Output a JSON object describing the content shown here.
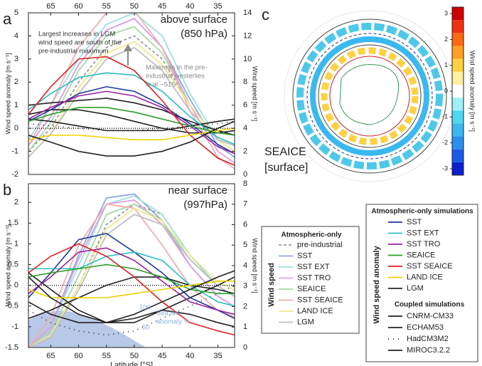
{
  "panel_labels": [
    "a",
    "b",
    "c"
  ],
  "chart_data": [
    {
      "type": "line",
      "title": [
        "above surface",
        "(850 hPa)"
      ],
      "x_label": "",
      "y_label": "Wind speed anomaly [m s⁻¹]",
      "y2_label": "Wind speed [m s⁻¹]",
      "x": [
        69,
        65,
        60,
        55,
        50,
        45,
        40,
        35,
        32
      ],
      "xlim": [
        69,
        32
      ],
      "xticks": [
        65,
        60,
        55,
        50,
        45,
        40,
        35
      ],
      "xaxis": "top",
      "ylim": [
        -2,
        5
      ],
      "yticks": [
        -2,
        -1,
        0,
        1,
        2,
        3,
        4,
        5
      ],
      "y2lim": [
        0,
        14
      ],
      "y2ticks": [
        0,
        2,
        4,
        6,
        8,
        10,
        12,
        14
      ],
      "zero_line": true,
      "annotations": [
        [
          "Largest increases in LGM",
          "wind speed are south of the",
          "pre-industrial maximum"
        ],
        [
          "Maximum in the pre-",
          "industrial westerlies",
          "is at ~51S"
        ]
      ],
      "series": [
        {
          "name": "SST",
          "color": "#1f3a9a",
          "values": [
            0.3,
            0.8,
            1.5,
            1.8,
            1.6,
            1.0,
            0.2,
            -0.7,
            -1.1
          ]
        },
        {
          "name": "SST EXT",
          "color": "#2bbfbf",
          "values": [
            0.8,
            1.5,
            2.2,
            2.4,
            2.3,
            1.6,
            0.5,
            -0.4,
            -0.7
          ]
        },
        {
          "name": "SST TRO",
          "color": "#a020a0",
          "values": [
            0.4,
            0.9,
            1.4,
            1.6,
            1.4,
            0.9,
            0.1,
            -0.8,
            -1.1
          ]
        },
        {
          "name": "SEAICE",
          "color": "#2ca02c",
          "values": [
            0.3,
            0.6,
            0.9,
            0.9,
            0.7,
            0.4,
            0.1,
            -0.2,
            -0.3
          ]
        },
        {
          "name": "SST SEAICE",
          "color": "#e02020",
          "values": [
            0.6,
            1.8,
            3.0,
            3.1,
            2.5,
            1.2,
            -0.3,
            -1.3,
            -1.6
          ]
        },
        {
          "name": "LAND ICE",
          "color": "#f0d000",
          "values": [
            -0.5,
            -0.3,
            -0.3,
            -0.4,
            -0.5,
            -0.5,
            -0.3,
            -0.1,
            0.0
          ]
        },
        {
          "name": "LGM",
          "color": "#222222",
          "values": [
            -0.3,
            -0.6,
            -1.0,
            -1.2,
            -1.2,
            -1.0,
            -0.6,
            0.0,
            0.3
          ]
        }
      ],
      "coupled_series": [
        {
          "name": "CNRM-CM33",
          "color": "#222222",
          "values": [
            0.6,
            0.8,
            0.8,
            0.6,
            0.3,
            0.0,
            -0.2,
            -0.2,
            -0.1
          ]
        },
        {
          "name": "ECHAM53",
          "color": "#222222",
          "values": [
            1.0,
            1.1,
            1.2,
            1.3,
            1.1,
            0.8,
            0.3,
            -0.1,
            -0.3
          ]
        },
        {
          "name": "HadCM3M2",
          "color": "#222222",
          "dash": "1,6",
          "values": [
            0.2,
            0.1,
            0.0,
            -0.1,
            -0.1,
            0.0,
            0.1,
            0.2,
            0.3
          ]
        },
        {
          "name": "MIROC3.2.2",
          "color": "#222222",
          "values": [
            0.4,
            0.3,
            0.1,
            -0.1,
            -0.1,
            -0.1,
            0.1,
            0.3,
            0.4
          ]
        }
      ],
      "wind_series": [
        {
          "name": "pre-industrial",
          "color": "#999999",
          "dash": "4,3",
          "values": [
            2,
            4,
            8,
            11,
            12,
            10,
            6,
            3,
            2
          ]
        },
        {
          "name": "SST",
          "color": "#8fa8e0",
          "values": [
            2.5,
            5,
            9.5,
            12.5,
            13.5,
            11,
            6.5,
            2.5,
            1.5
          ]
        },
        {
          "name": "SST EXT",
          "color": "#9ee0e0",
          "values": [
            3,
            6,
            10,
            13,
            14,
            12,
            7,
            3,
            2
          ]
        },
        {
          "name": "SST TRO",
          "color": "#e0a0e0",
          "values": [
            2.5,
            5,
            9.5,
            12.5,
            13.5,
            11,
            6,
            2,
            1
          ]
        },
        {
          "name": "SEAICE",
          "color": "#a8d8a8",
          "values": [
            2,
            4.5,
            9,
            12,
            12.8,
            10.5,
            6,
            3,
            2
          ]
        },
        {
          "name": "SST SEAICE",
          "color": "#f0b0b0",
          "values": [
            2.5,
            6,
            11,
            14,
            14.2,
            11,
            5.5,
            1.5,
            0.5
          ]
        },
        {
          "name": "LAND ICE",
          "color": "#f0e890",
          "values": [
            1.5,
            3.5,
            7.5,
            10.5,
            11.5,
            9.5,
            6,
            3,
            2
          ]
        },
        {
          "name": "LGM",
          "color": "#c0c0c0",
          "values": [
            1.5,
            3.5,
            7,
            10,
            11,
            9,
            5.5,
            3,
            2.5
          ]
        }
      ]
    },
    {
      "type": "line",
      "title": [
        "near surface",
        "(997hPa)"
      ],
      "x_label": "Latitude [°S]",
      "y_label": "Wind speed anomaly [m s⁻¹]",
      "y2_label": "Wind speed [m s⁻¹]",
      "x": [
        69,
        65,
        60,
        55,
        50,
        45,
        40,
        35,
        32
      ],
      "xlim": [
        69,
        32
      ],
      "xticks": [
        65,
        60,
        55,
        50,
        45,
        40,
        35
      ],
      "xaxis": "bottom",
      "ylim": [
        -1.5,
        2.45
      ],
      "yticks": [
        -1.5,
        -1,
        -0.5,
        0,
        0.5,
        1,
        1.5,
        2
      ],
      "y2lim": [
        0,
        8
      ],
      "y2ticks": [
        0,
        1,
        2,
        3,
        4,
        5,
        6,
        7,
        8
      ],
      "zero_line": true,
      "annotations": [
        [
          "100"
        ],
        [
          "50"
        ],
        [
          "Sea ice",
          "anomaly %"
        ]
      ],
      "series": [
        {
          "name": "SST",
          "color": "#1f3a9a",
          "values": [
            -0.3,
            0.3,
            1.1,
            1.25,
            0.8,
            0.3,
            -0.3,
            -0.6,
            -0.8
          ]
        },
        {
          "name": "SST EXT",
          "color": "#2bbfbf",
          "values": [
            0.4,
            0.4,
            0.4,
            0.7,
            0.8,
            0.6,
            0.0,
            -0.4,
            -0.5
          ]
        },
        {
          "name": "SST TRO",
          "color": "#a020a0",
          "values": [
            -0.2,
            0.2,
            0.8,
            0.9,
            0.6,
            0.1,
            -0.4,
            -0.6,
            -0.7
          ]
        },
        {
          "name": "SEAICE",
          "color": "#2ca02c",
          "values": [
            0.2,
            0.3,
            0.4,
            0.5,
            0.4,
            0.2,
            -0.1,
            -0.2,
            -0.2
          ]
        },
        {
          "name": "SST SEAICE",
          "color": "#e02020",
          "values": [
            0.3,
            0.7,
            1.0,
            0.7,
            0.2,
            -0.4,
            -0.9,
            -1.1,
            -1.2
          ]
        },
        {
          "name": "LAND ICE",
          "color": "#f0d000",
          "values": [
            -0.1,
            -0.3,
            -0.3,
            -0.3,
            -0.2,
            -0.1,
            0.0,
            0.1,
            0.1
          ]
        },
        {
          "name": "LGM",
          "color": "#222222",
          "values": [
            0.2,
            -0.3,
            -0.7,
            -0.9,
            -0.7,
            -0.4,
            -0.1,
            0.2,
            0.35
          ]
        }
      ],
      "coupled_series": [
        {
          "name": "CNRM-CM33",
          "color": "#222222",
          "values": [
            0.3,
            -0.1,
            -0.6,
            -0.9,
            -0.9,
            -0.6,
            -0.3,
            0.0,
            0.2
          ]
        },
        {
          "name": "ECHAM53",
          "color": "#222222",
          "values": [
            -0.8,
            -0.6,
            -0.3,
            0.0,
            0.2,
            0.2,
            0.0,
            -0.1,
            -0.2
          ]
        },
        {
          "name": "HadCM3M2",
          "color": "#222222",
          "dash": "1,6",
          "values": [
            -0.6,
            -0.9,
            -1.1,
            -1.2,
            -1.1,
            -0.8,
            -0.5,
            -0.2,
            0.0
          ]
        },
        {
          "name": "MIROC3.2.2",
          "color": "#222222",
          "values": [
            -0.4,
            -0.7,
            -0.9,
            -0.9,
            -0.8,
            -0.6,
            -0.7,
            -0.9,
            -1.0
          ]
        }
      ],
      "wind_series": [
        {
          "name": "pre-industrial",
          "color": "#999999",
          "dash": "4,3",
          "values": [
            0,
            0.5,
            3,
            6,
            7,
            6.5,
            4.5,
            3,
            2.5
          ]
        },
        {
          "name": "SST",
          "color": "#8fa8e0",
          "values": [
            0,
            1,
            4.5,
            7.3,
            7.5,
            6.2,
            4,
            2.5,
            2
          ]
        },
        {
          "name": "SST EXT",
          "color": "#9ee0e0",
          "values": [
            0,
            1,
            4,
            7,
            7.4,
            6.5,
            4.5,
            3,
            2.5
          ]
        },
        {
          "name": "SST TRO",
          "color": "#e0a0e0",
          "values": [
            0,
            1,
            4.3,
            7,
            7.2,
            6,
            4,
            2.5,
            2
          ]
        },
        {
          "name": "SEAICE",
          "color": "#a8d8a8",
          "values": [
            0,
            0.8,
            3.5,
            6.5,
            7,
            6.2,
            4.3,
            3,
            2.5
          ]
        },
        {
          "name": "SST SEAICE",
          "color": "#f0b0b0",
          "values": [
            0,
            1.5,
            5,
            7,
            6.8,
            5,
            3,
            1.8,
            1.5
          ]
        },
        {
          "name": "LAND ICE",
          "color": "#f0e890",
          "values": [
            0,
            0.6,
            3,
            5.8,
            6.8,
            6.2,
            4.5,
            3.2,
            2.8
          ]
        },
        {
          "name": "LGM",
          "color": "#c0c0c0",
          "values": [
            0,
            0.5,
            2.8,
            5.5,
            6.5,
            6,
            4.3,
            3,
            2.5
          ]
        }
      ]
    }
  ],
  "map": {
    "label": [
      "SEAICE",
      "[surface]"
    ]
  },
  "colorbar": {
    "label": "Wind speed anomaly [m s⁻¹]",
    "clim": [
      -3.25,
      3.25
    ],
    "ticks": [
      -3,
      -2,
      -1,
      0,
      1,
      2,
      3
    ],
    "colors": [
      "#0a1fd0",
      "#1a5ae8",
      "#2a8ef0",
      "#3ab8f0",
      "#4ed8f0",
      "#9ef0f8",
      "#ffffff",
      "#fff0a0",
      "#ffd040",
      "#ffa020",
      "#ff6a10",
      "#f03010",
      "#d00000"
    ]
  },
  "legends": [
    {
      "title": "Atmospheric-only",
      "side_label": "Wind speed"
    },
    {
      "title": "Atmospheric-only simulations",
      "side_label": "Wind speed anomaly",
      "subtitle": "Coupled simulations"
    }
  ]
}
